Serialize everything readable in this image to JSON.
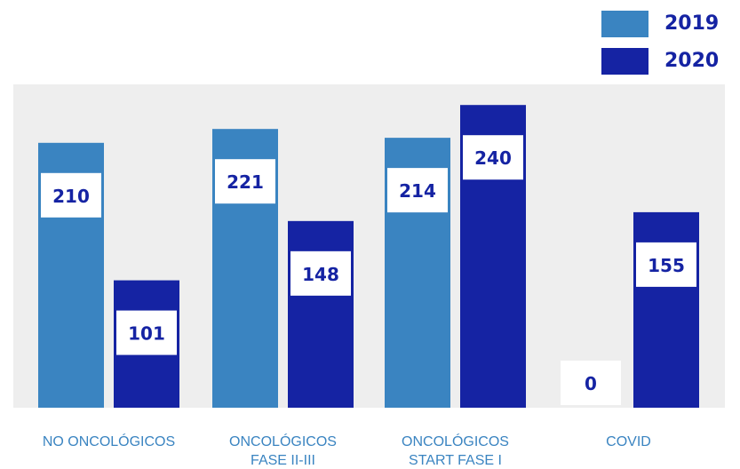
{
  "chart_data": {
    "type": "bar",
    "categories": [
      [
        "NO ONCOLÓGICOS"
      ],
      [
        "ONCOLÓGICOS",
        "FASE II-III"
      ],
      [
        "ONCOLÓGICOS",
        "START FASE I"
      ],
      [
        "COVID"
      ]
    ],
    "series": [
      {
        "name": "2019",
        "color": "#3a84c1",
        "values": [
          210,
          221,
          214,
          0
        ]
      },
      {
        "name": "2020",
        "color": "#1523a3",
        "values": [
          101,
          148,
          240,
          155
        ]
      }
    ],
    "ylim": [
      0,
      300
    ],
    "grid": false,
    "legend_position": "top-right",
    "label_color": "#3a84c1",
    "value_label_color": "#1523a3",
    "plot_background": "#eeeeee"
  }
}
